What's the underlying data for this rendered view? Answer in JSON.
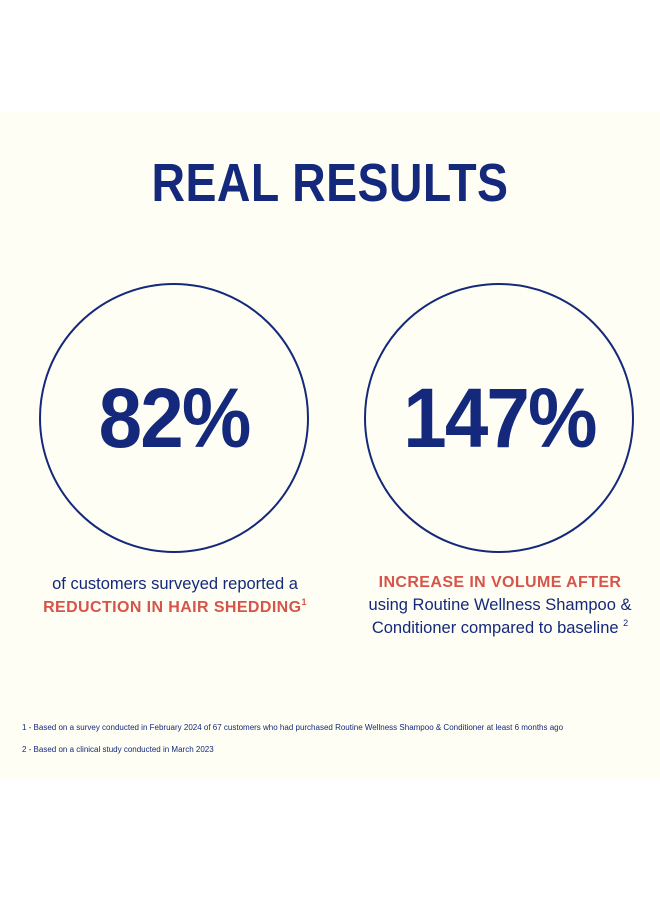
{
  "title": "REAL RESULTS",
  "colors": {
    "navy": "#14297B",
    "red": "#D6544A",
    "card_background": "#FFFEF4",
    "page_background": "#FFFFFF"
  },
  "stats": [
    {
      "value": "82%",
      "lead": "of customers surveyed reported a",
      "highlight": "REDUCTION IN HAIR SHEDDING",
      "footnote_ref": "1"
    },
    {
      "value": "147%",
      "highlight": "INCREASE IN VOLUME AFTER",
      "lead_line1": "using Routine Wellness Shampoo &",
      "lead_line2": "Conditioner compared to baseline",
      "footnote_ref": "2"
    }
  ],
  "footnotes": [
    "1 -  Based on a survey conducted in February 2024 of 67 customers who had purchased Routine Wellness Shampoo & Conditioner at least 6 months ago",
    "2 -  Based on a clinical study conducted in March 2023"
  ]
}
